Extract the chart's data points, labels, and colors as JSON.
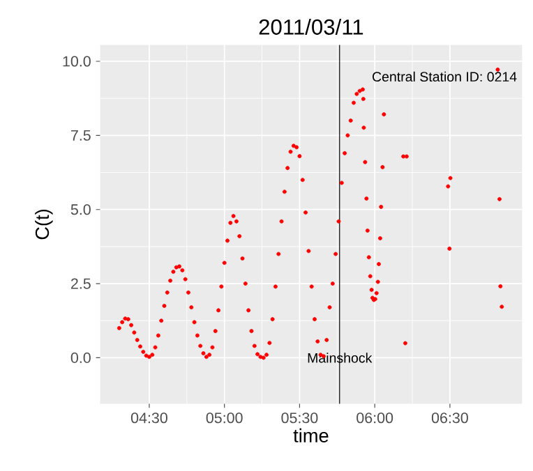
{
  "chart_data": {
    "type": "scatter",
    "title": "2011/03/11",
    "xlabel": "time",
    "ylabel": "C(t)",
    "color": "#ff0000",
    "marker": "circle",
    "grid": true,
    "xlim": [
      4.173,
      6.98
    ],
    "ylim": [
      -1.55,
      10.55
    ],
    "xticks": [
      {
        "value": 4.5,
        "label": "04:30"
      },
      {
        "value": 5.0,
        "label": "05:00"
      },
      {
        "value": 5.5,
        "label": "05:30"
      },
      {
        "value": 6.0,
        "label": "06:00"
      },
      {
        "value": 6.5,
        "label": "06:30"
      }
    ],
    "yticks": [
      {
        "value": 0,
        "label": "0.0"
      },
      {
        "value": 2.5,
        "label": "2.5"
      },
      {
        "value": 5,
        "label": "5.0"
      },
      {
        "value": 7.5,
        "label": "7.5"
      },
      {
        "value": 10,
        "label": "10.0"
      }
    ],
    "ref_lines": [
      {
        "axis": "x",
        "value": 5.766,
        "label": "Mainshock",
        "color": "#000000"
      }
    ],
    "annotations": [
      "Central Station ID: 0214"
    ],
    "x": [
      4.3,
      4.32,
      4.34,
      4.36,
      4.38,
      4.4,
      4.42,
      4.44,
      4.46,
      4.48,
      4.5,
      4.52,
      4.54,
      4.56,
      4.58,
      4.6,
      4.62,
      4.64,
      4.66,
      4.68,
      4.7,
      4.72,
      4.74,
      4.76,
      4.78,
      4.8,
      4.82,
      4.84,
      4.86,
      4.88,
      4.9,
      4.92,
      4.94,
      4.96,
      4.98,
      5.0,
      5.02,
      5.04,
      5.06,
      5.08,
      5.1,
      5.12,
      5.14,
      5.16,
      5.18,
      5.2,
      5.22,
      5.24,
      5.26,
      5.28,
      5.3,
      5.32,
      5.34,
      5.36,
      5.38,
      5.4,
      5.42,
      5.44,
      5.46,
      5.48,
      5.5,
      5.52,
      5.54,
      5.56,
      5.58,
      5.6,
      5.62,
      5.64,
      5.66,
      5.68,
      5.7,
      5.72,
      5.74,
      5.76,
      5.78,
      5.8,
      5.82,
      5.84,
      5.86,
      5.88,
      5.9,
      5.92,
      5.924,
      5.927,
      5.936,
      5.945,
      5.952,
      5.961,
      5.97,
      5.979,
      5.985,
      5.994,
      6.003,
      6.012,
      6.021,
      6.027,
      6.036,
      6.042,
      6.052,
      6.061,
      6.19,
      6.212,
      6.203,
      6.488,
      6.503,
      6.497,
      6.818,
      6.83,
      6.836,
      6.845
    ],
    "values": [
      1.0,
      1.2,
      1.32,
      1.3,
      1.1,
      0.85,
      0.6,
      0.38,
      0.2,
      0.07,
      0.03,
      0.1,
      0.35,
      0.75,
      1.25,
      1.75,
      2.2,
      2.6,
      2.9,
      3.05,
      3.08,
      2.95,
      2.65,
      2.2,
      1.7,
      1.2,
      0.75,
      0.4,
      0.15,
      0.03,
      0.1,
      0.35,
      0.9,
      1.6,
      2.4,
      3.2,
      3.95,
      4.55,
      4.78,
      4.6,
      4.1,
      3.35,
      2.5,
      1.6,
      0.9,
      0.4,
      0.12,
      0.03,
      0.0,
      0.1,
      0.5,
      1.3,
      2.4,
      3.5,
      4.6,
      5.6,
      6.4,
      6.95,
      7.15,
      7.1,
      6.8,
      6.0,
      4.9,
      3.6,
      2.4,
      1.3,
      0.55,
      0.1,
      0.05,
      0.6,
      1.7,
      2.5,
      3.5,
      4.6,
      5.9,
      6.9,
      7.5,
      8.0,
      8.6,
      8.9,
      9.0,
      9.05,
      8.73,
      7.76,
      6.6,
      5.37,
      4.29,
      3.39,
      2.75,
      2.29,
      2.02,
      1.95,
      1.98,
      2.18,
      2.56,
      3.16,
      4.03,
      5.09,
      6.43,
      8.21,
      6.79,
      6.79,
      0.49,
      5.78,
      6.06,
      3.68,
      9.72,
      5.35,
      2.41,
      1.72
    ]
  }
}
